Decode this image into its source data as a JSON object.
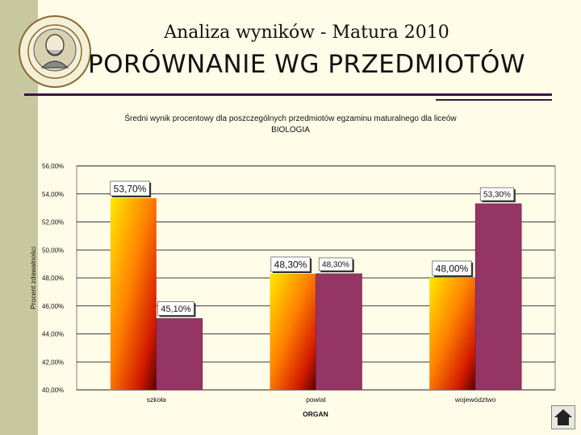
{
  "slide": {
    "title": "Analiza wyników  - Matura 2010",
    "heading": "PORÓWNANIE WG PRZEDMIOTÓW"
  },
  "chart_data": {
    "type": "bar",
    "title": "Średni wynik procentowy dla poszczególnych przedmiotów egzaminu maturalnego dla liceów",
    "subtitle": "BIOLOGIA",
    "xlabel": "ORGAN",
    "ylabel": "Procent zdawalności",
    "categories": [
      "szkoła",
      "powiat",
      "województwo"
    ],
    "series": [
      {
        "values": [
          53.7,
          48.3,
          48.0
        ],
        "color": "gradient-yellow-red"
      },
      {
        "values": [
          45.1,
          48.3,
          53.3
        ],
        "color": "#953563"
      }
    ],
    "data_labels": [
      [
        "53,70%",
        "48,30%",
        "48,00%"
      ],
      [
        "45,10%",
        "48,30%",
        "53,30%"
      ]
    ],
    "ylim": [
      40,
      56
    ],
    "yticks": [
      "40,00%",
      "42,00%",
      "44,00%",
      "46,00%",
      "48,00%",
      "50,00%",
      "52,00%",
      "54,00%",
      "56,00%"
    ],
    "grid": true
  },
  "icons": {
    "logo": "school-seal-logo",
    "nav": "home-icon"
  }
}
